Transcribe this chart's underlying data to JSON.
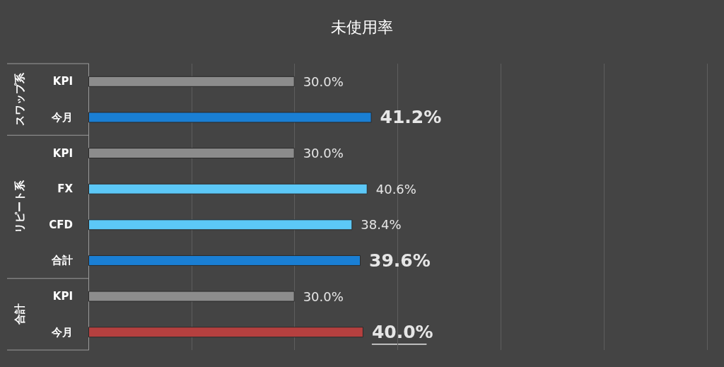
{
  "chart_data": {
    "type": "bar",
    "orientation": "horizontal",
    "title": "未使用率",
    "categories": [
      "KPI",
      "今月",
      "KPI",
      "FX",
      "CFD",
      "合計",
      "KPI",
      "今月"
    ],
    "values": [
      30.0,
      41.2,
      30.0,
      40.6,
      38.4,
      39.6,
      30.0,
      40.0
    ],
    "colors": [
      "#8c8c8c",
      "#1a7fd4",
      "#8c8c8c",
      "#5cc8f7",
      "#5cc8f7",
      "#1a7fd4",
      "#8c8c8c",
      "#b5403f"
    ],
    "value_labels": [
      "30.0%",
      "41.2%",
      "30.0%",
      "40.6%",
      "38.4%",
      "39.6%",
      "30.0%",
      "40.0%"
    ],
    "annotations": [
      "スワップ系",
      "リピート系",
      "合計"
    ],
    "xlim": [
      0,
      90
    ],
    "xticks": [
      {
        "value": 0,
        "label": null
      },
      {
        "value": 15,
        "label": null
      },
      {
        "value": 30,
        "label": null
      },
      {
        "value": 45,
        "label": null
      },
      {
        "value": 60,
        "label": null
      },
      {
        "value": 75,
        "label": null
      },
      {
        "value": 90,
        "label": null
      }
    ],
    "grid": "x",
    "tick_labels": "y"
  }
}
